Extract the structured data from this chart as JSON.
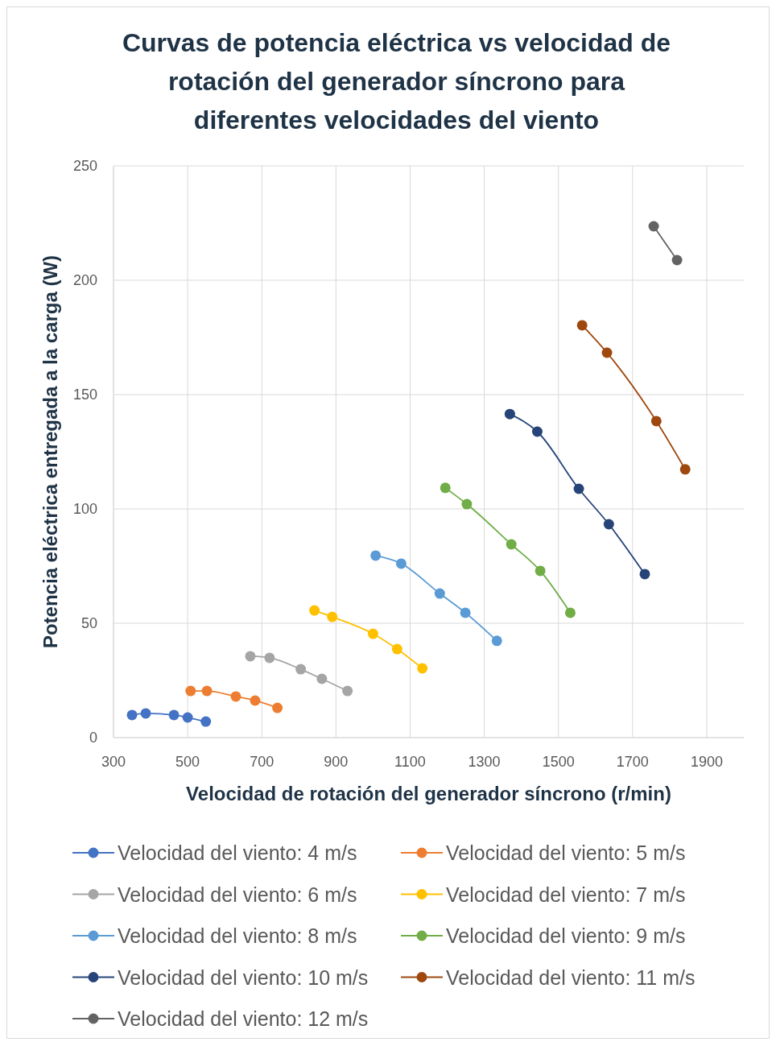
{
  "chart_data": {
    "type": "line",
    "title": "Curvas de potencia eléctrica vs velocidad de rotación del generador síncrono para diferentes velocidades del viento",
    "xlabel": "Velocidad de rotación del generador síncrono (r/min)",
    "ylabel": "Potencia eléctrica  entregada a la carga (W)",
    "xlim": [
      300,
      2000
    ],
    "xticks": [
      300,
      500,
      700,
      900,
      1100,
      1300,
      1500,
      1700,
      1900
    ],
    "ylim": [
      0,
      250
    ],
    "yticks": [
      0,
      50,
      100,
      150,
      200,
      250
    ],
    "grid": true,
    "legend": "bottom",
    "marker": "circle",
    "line_style": "solid",
    "series": [
      {
        "name": "Velocidad del viento: 4 m/s",
        "color": "#4472c4",
        "x": [
          350,
          387,
          463,
          500,
          549
        ],
        "values": [
          9.9,
          10.6,
          9.9,
          8.8,
          7.0
        ]
      },
      {
        "name": "Velocidad del viento: 5 m/s",
        "color": "#ed7d31",
        "x": [
          508,
          552,
          630,
          682,
          742
        ],
        "values": [
          20.4,
          20.4,
          18.0,
          16.2,
          13.0
        ]
      },
      {
        "name": "Velocidad del viento: 6 m/s",
        "color": "#a5a5a5",
        "x": [
          669,
          721,
          805,
          862,
          931
        ],
        "values": [
          35.6,
          34.9,
          29.9,
          25.7,
          20.4
        ]
      },
      {
        "name": "Velocidad del viento: 7 m/s",
        "color": "#ffc000",
        "x": [
          842,
          890,
          1000,
          1065,
          1133
        ],
        "values": [
          55.6,
          52.8,
          45.4,
          38.7,
          30.3
        ]
      },
      {
        "name": "Velocidad del viento: 8 m/s",
        "color": "#5b9bd5",
        "x": [
          1007,
          1076,
          1180,
          1249,
          1334
        ],
        "values": [
          79.6,
          76.1,
          63.0,
          54.6,
          42.3
        ]
      },
      {
        "name": "Velocidad del viento: 9 m/s",
        "color": "#70ad47",
        "x": [
          1195,
          1253,
          1373,
          1451,
          1532
        ],
        "values": [
          109.2,
          102.1,
          84.5,
          72.9,
          54.6
        ]
      },
      {
        "name": "Velocidad del viento: 10 m/s",
        "color": "#264478",
        "x": [
          1369,
          1443,
          1555,
          1636,
          1733
        ],
        "values": [
          141.5,
          133.8,
          108.8,
          93.3,
          71.5
        ]
      },
      {
        "name": "Velocidad del viento: 11 m/s",
        "color": "#9e480e",
        "x": [
          1564,
          1631,
          1764,
          1842
        ],
        "values": [
          180.3,
          168.3,
          138.4,
          117.3
        ]
      },
      {
        "name": "Velocidad del viento: 12 m/s",
        "color": "#636363",
        "x": [
          1757,
          1820
        ],
        "values": [
          223.6,
          208.8
        ]
      }
    ]
  }
}
